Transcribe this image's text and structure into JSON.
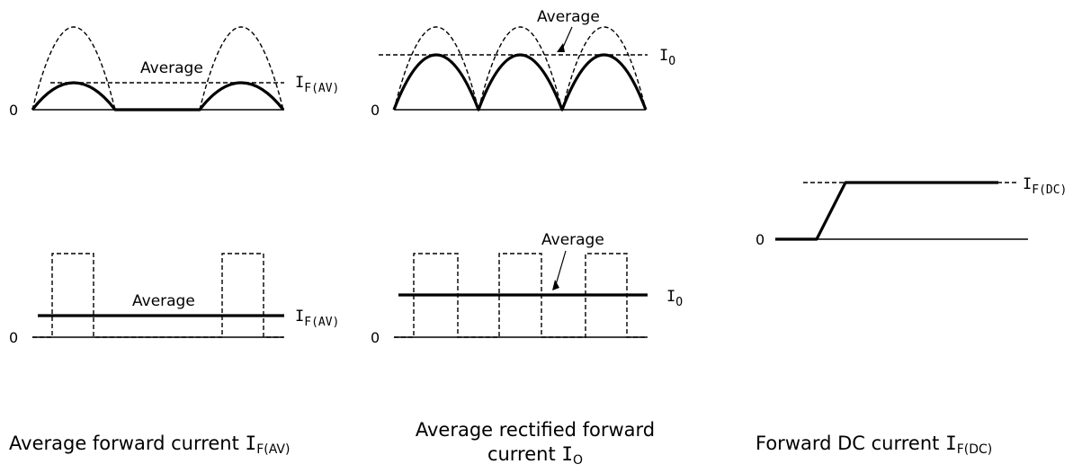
{
  "panels": {
    "avg_forward_sine": {
      "average_label": "Average",
      "zero": "0",
      "level_symbol": "I",
      "level_sub": "F(AV)"
    },
    "avg_rectified_sine": {
      "average_label": "Average",
      "zero": "0",
      "level_symbol": "I",
      "level_sub": "O"
    },
    "avg_forward_square": {
      "average_label": "Average",
      "zero": "0",
      "level_symbol": "I",
      "level_sub": "F(AV)"
    },
    "avg_rectified_square": {
      "average_label": "Average",
      "zero": "0",
      "level_symbol": "I",
      "level_sub": "O"
    },
    "forward_dc": {
      "zero": "0",
      "level_symbol": "I",
      "level_sub": "F(DC)"
    }
  },
  "captions": {
    "left": {
      "text": "Average forward current ",
      "symbol": "I",
      "sub": "F(AV)"
    },
    "middle": {
      "line1": "Average rectified forward",
      "line2": "current ",
      "symbol": "I",
      "sub": "O"
    },
    "right": {
      "text": "Forward DC current ",
      "symbol": "I",
      "sub": "F(DC)"
    }
  }
}
